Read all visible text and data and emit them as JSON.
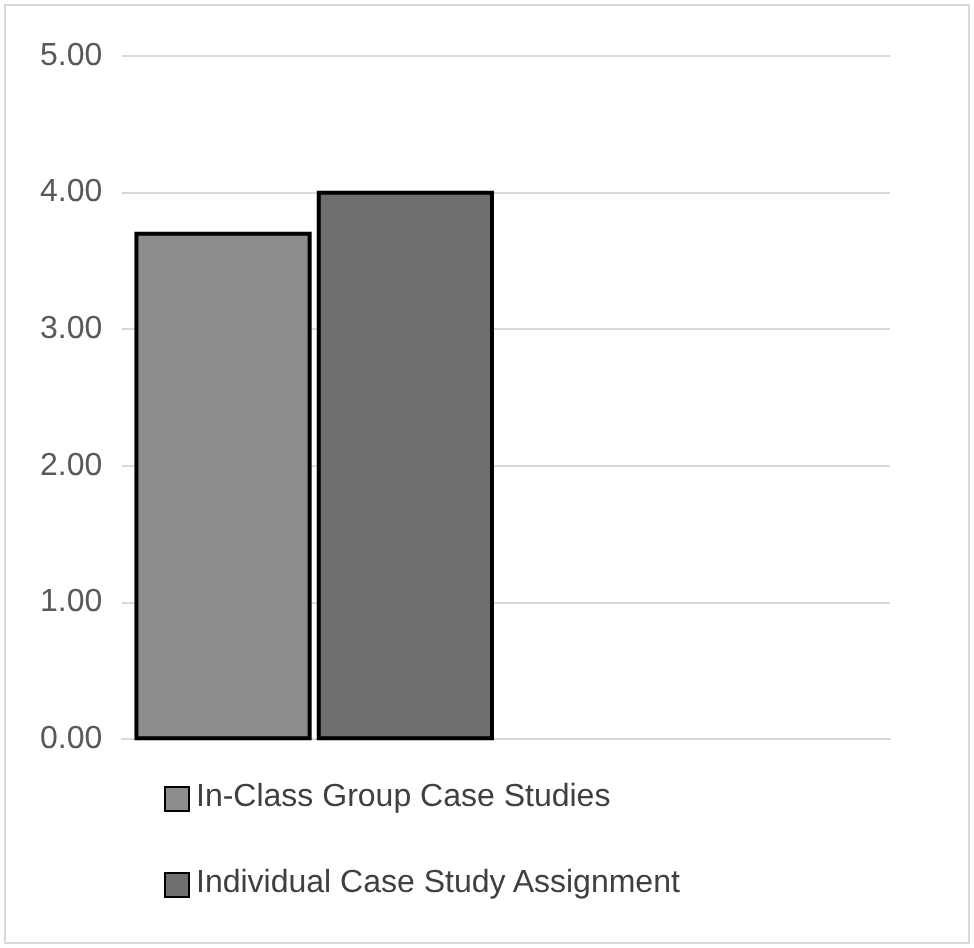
{
  "chart_data": {
    "type": "bar",
    "categories": [
      null,
      null
    ],
    "series": [
      {
        "name": "In-Class Group Case Studies",
        "color": "#8c8c8c",
        "values": [
          3.7,
          null
        ]
      },
      {
        "name": "Individual Case Study Assignment",
        "color": "#6e6e6e",
        "values": [
          4.0,
          null
        ]
      }
    ],
    "ylim": [
      0,
      5
    ],
    "yticks": [
      {
        "value": 0,
        "label": "0.00"
      },
      {
        "value": 1,
        "label": "1.00"
      },
      {
        "value": 2,
        "label": "2.00"
      },
      {
        "value": 3,
        "label": "3.00"
      },
      {
        "value": 4,
        "label": "4.00"
      },
      {
        "value": 5,
        "label": "5.00"
      }
    ],
    "grid": "y",
    "legend": "bottom left"
  }
}
